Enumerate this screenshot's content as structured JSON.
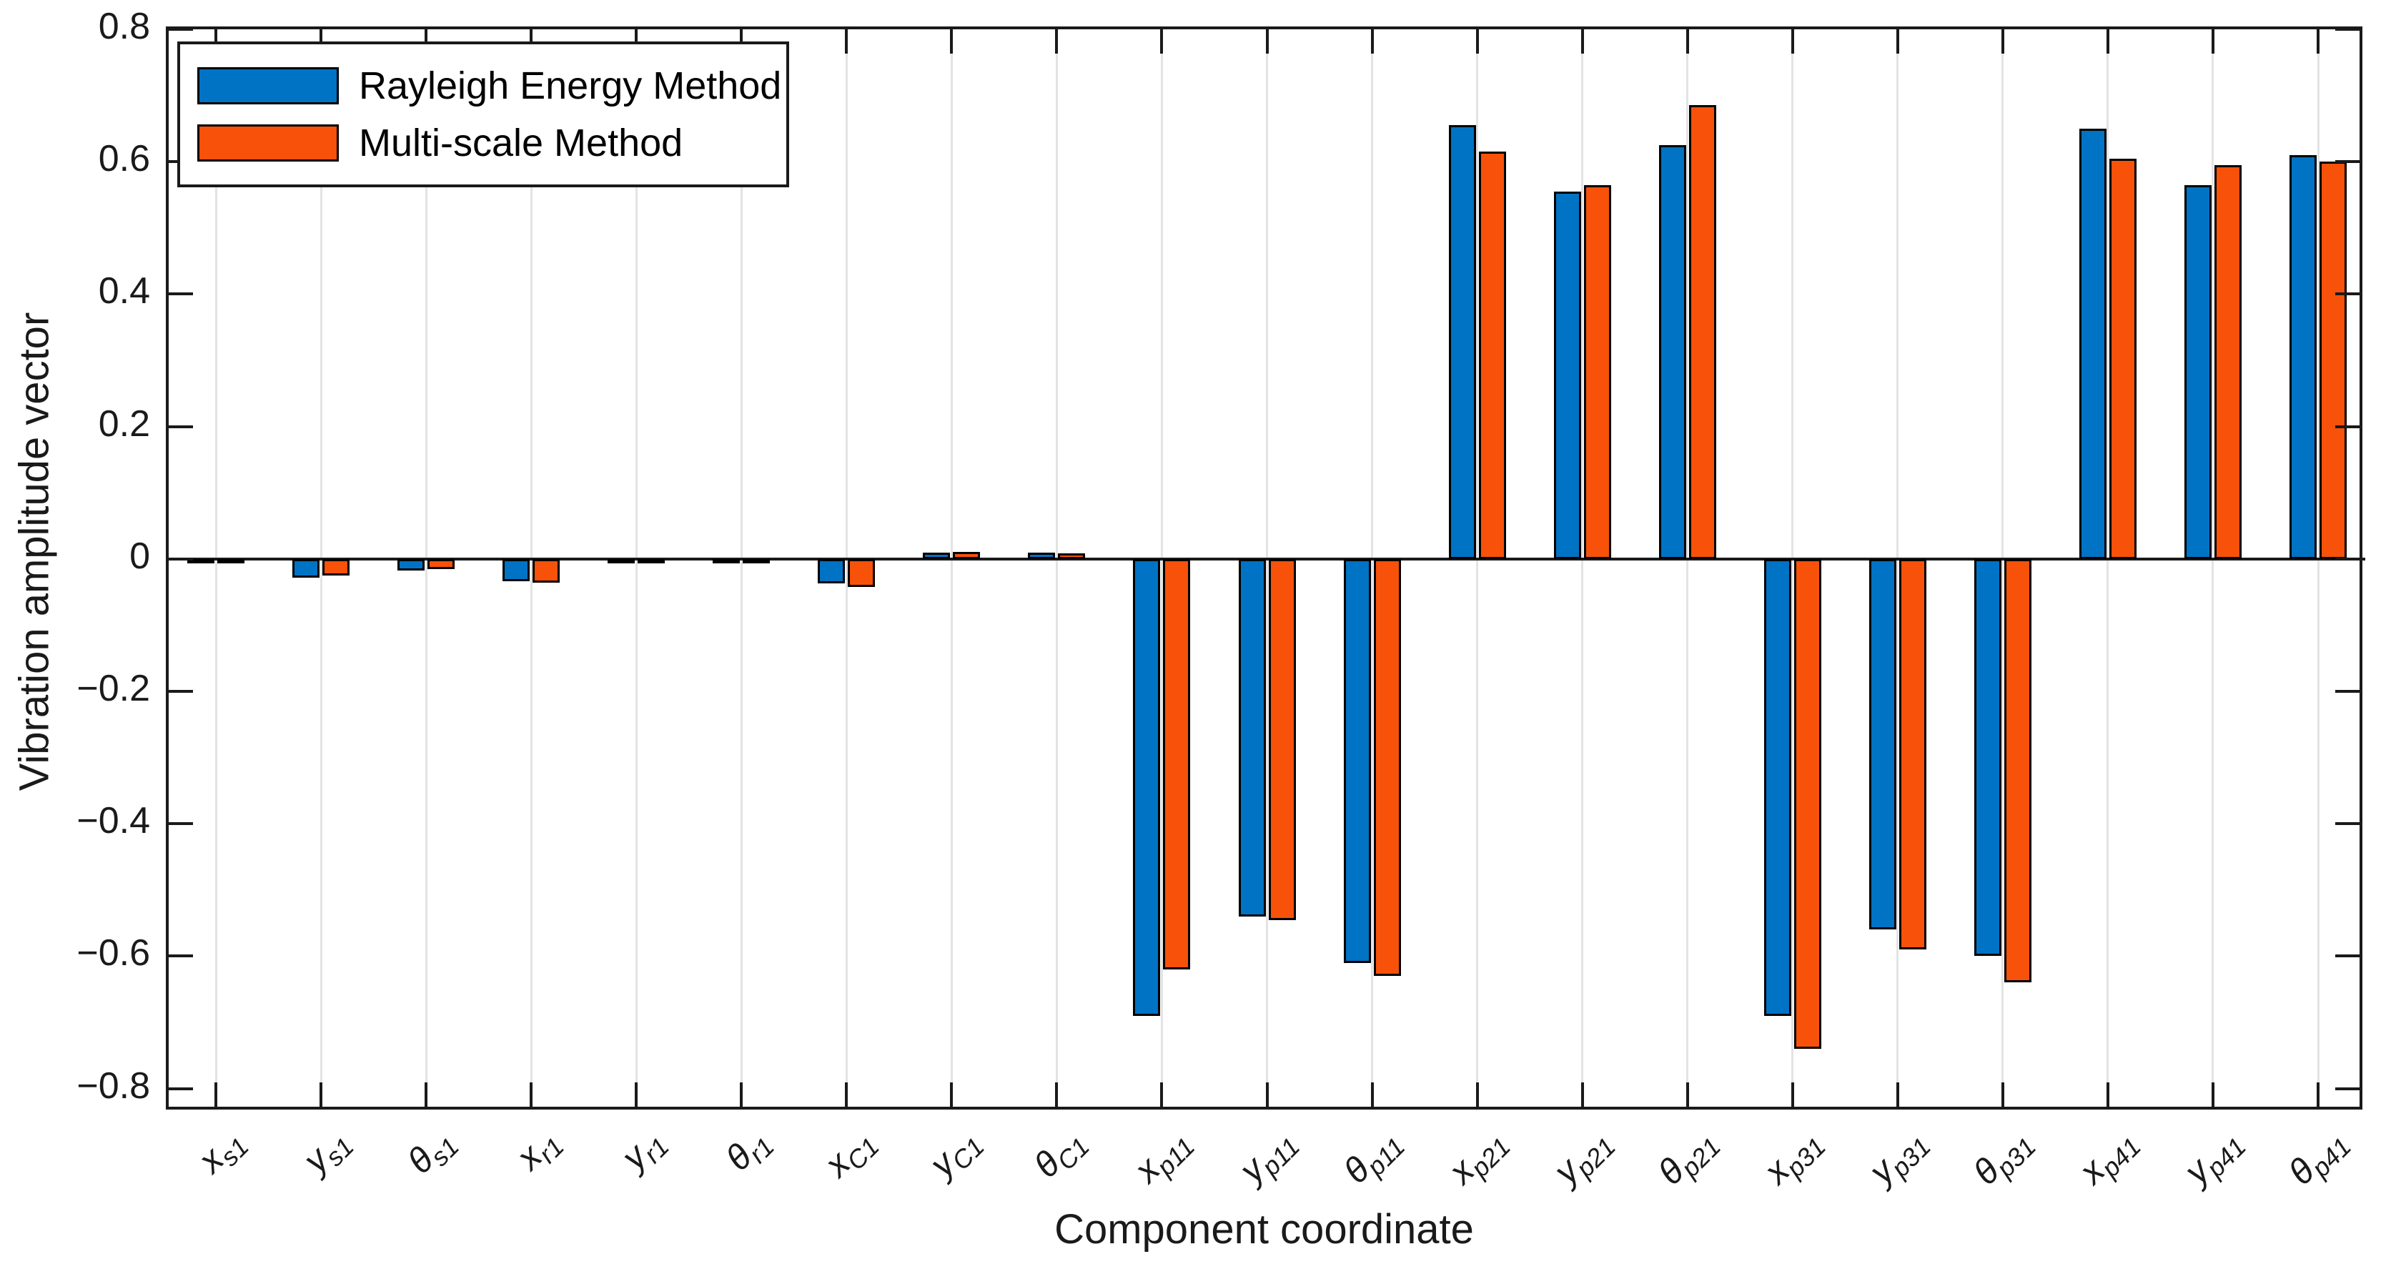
{
  "figure": {
    "background": "#FFFFFF",
    "axis_color": "#1A1A1A",
    "grid_color": "#E3E3E3",
    "bar_outline_color": "#000000"
  },
  "legend": {
    "position": "northwest",
    "items": [
      "Rayleigh Energy Method",
      "Multi-scale Method"
    ]
  },
  "chart_data": {
    "type": "bar",
    "title": "",
    "xlabel": "Component coordinate",
    "ylabel": "Vibration amplitude vector",
    "ylim": [
      -0.836,
      0.8
    ],
    "yticks": [
      -0.8,
      -0.6,
      -0.4,
      -0.2,
      0,
      0.2,
      0.4,
      0.6,
      0.8
    ],
    "grid": "vertical-only",
    "legend_position": "northwest",
    "categories": [
      "x_s1",
      "y_s1",
      "θ_s1",
      "x_r1",
      "y_r1",
      "θ_r1",
      "x_C1",
      "y_C1",
      "θ_C1",
      "x_p11",
      "y_p11",
      "θ_p11",
      "x_p21",
      "y_p21",
      "θ_p21",
      "x_p31",
      "y_p31",
      "θ_p31",
      "x_p41",
      "y_p41",
      "θ_p41"
    ],
    "categories_rich": [
      {
        "base": "x",
        "sub": "s1"
      },
      {
        "base": "y",
        "sub": "s1"
      },
      {
        "base": "θ",
        "sub": "s1"
      },
      {
        "base": "x",
        "sub": "r1"
      },
      {
        "base": "y",
        "sub": "r1"
      },
      {
        "base": "θ",
        "sub": "r1"
      },
      {
        "base": "x",
        "sub": "C1"
      },
      {
        "base": "y",
        "sub": "C1"
      },
      {
        "base": "θ",
        "sub": "C1"
      },
      {
        "base": "x",
        "sub": "p11"
      },
      {
        "base": "y",
        "sub": "p11"
      },
      {
        "base": "θ",
        "sub": "p11"
      },
      {
        "base": "x",
        "sub": "p21"
      },
      {
        "base": "y",
        "sub": "p21"
      },
      {
        "base": "θ",
        "sub": "p21"
      },
      {
        "base": "x",
        "sub": "p31"
      },
      {
        "base": "y",
        "sub": "p31"
      },
      {
        "base": "θ",
        "sub": "p31"
      },
      {
        "base": "x",
        "sub": "p41"
      },
      {
        "base": "y",
        "sub": "p41"
      },
      {
        "base": "θ",
        "sub": "p41"
      }
    ],
    "series": [
      {
        "name": "Rayleigh Energy Method",
        "color": "#0073C4",
        "values": [
          -0.002,
          -0.028,
          -0.017,
          -0.034,
          -0.002,
          -0.007,
          -0.037,
          0.009,
          0.009,
          -0.69,
          -0.54,
          -0.61,
          0.655,
          0.555,
          0.625,
          -0.69,
          -0.56,
          -0.6,
          0.65,
          0.565,
          0.61
        ]
      },
      {
        "name": "Multi-scale Method",
        "color": "#F7510A",
        "values": [
          -0.002,
          -0.025,
          -0.015,
          -0.036,
          -0.002,
          -0.003,
          -0.042,
          0.011,
          0.008,
          -0.62,
          -0.545,
          -0.63,
          0.615,
          0.565,
          0.685,
          -0.74,
          -0.59,
          -0.64,
          0.605,
          0.595,
          0.6
        ]
      }
    ]
  }
}
